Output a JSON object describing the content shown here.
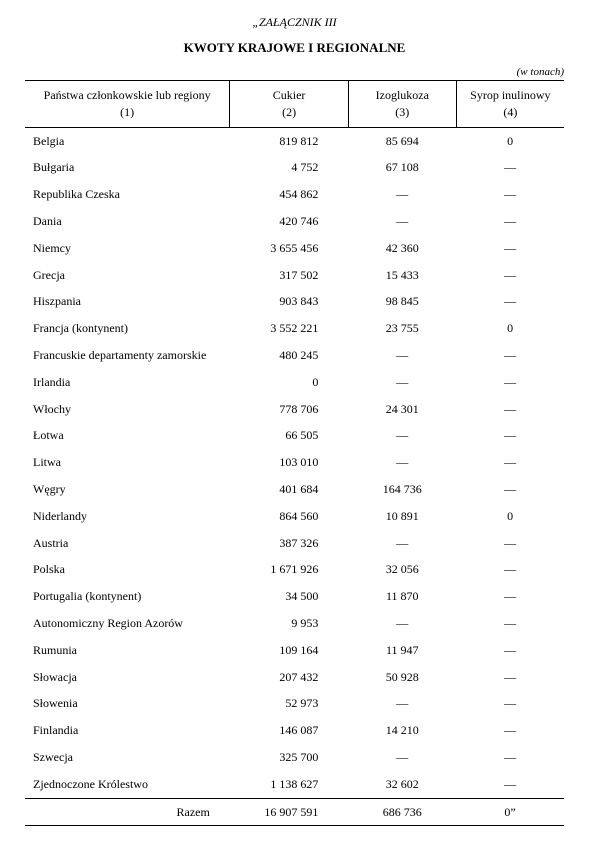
{
  "annex_label": "„ZAŁĄCZNIK III",
  "title": "KWOTY KRAJOWE I REGIONALNE",
  "unit_note": "(w tonach)",
  "columns": {
    "c1": {
      "label": "Państwa członkowskie lub regiony",
      "num": "(1)"
    },
    "c2": {
      "label": "Cukier",
      "num": "(2)"
    },
    "c3": {
      "label": "Izoglukoza",
      "num": "(3)"
    },
    "c4": {
      "label": "Syrop inulinowy",
      "num": "(4)"
    }
  },
  "rows": [
    {
      "country": "Belgia",
      "sugar": "819 812",
      "iso": "85 694",
      "inulin": "0"
    },
    {
      "country": "Bułgaria",
      "sugar": "4 752",
      "iso": "67 108",
      "inulin": "—"
    },
    {
      "country": "Republika Czeska",
      "sugar": "454 862",
      "iso": "—",
      "inulin": "—"
    },
    {
      "country": "Dania",
      "sugar": "420 746",
      "iso": "—",
      "inulin": "—"
    },
    {
      "country": "Niemcy",
      "sugar": "3 655 456",
      "iso": "42 360",
      "inulin": "—"
    },
    {
      "country": "Grecja",
      "sugar": "317 502",
      "iso": "15 433",
      "inulin": "—"
    },
    {
      "country": "Hiszpania",
      "sugar": "903 843",
      "iso": "98 845",
      "inulin": "—"
    },
    {
      "country": "Francja (kontynent)",
      "sugar": "3 552 221",
      "iso": "23 755",
      "inulin": "0"
    },
    {
      "country": "Francuskie departamenty zamorskie",
      "sugar": "480 245",
      "iso": "—",
      "inulin": "—"
    },
    {
      "country": "Irlandia",
      "sugar": "0",
      "iso": "—",
      "inulin": "—"
    },
    {
      "country": "Włochy",
      "sugar": "778 706",
      "iso": "24 301",
      "inulin": "—"
    },
    {
      "country": "Łotwa",
      "sugar": "66 505",
      "iso": "—",
      "inulin": "—"
    },
    {
      "country": "Litwa",
      "sugar": "103 010",
      "iso": "—",
      "inulin": "—"
    },
    {
      "country": "Węgry",
      "sugar": "401 684",
      "iso": "164 736",
      "inulin": "—"
    },
    {
      "country": "Niderlandy",
      "sugar": "864 560",
      "iso": "10 891",
      "inulin": "0"
    },
    {
      "country": "Austria",
      "sugar": "387 326",
      "iso": "—",
      "inulin": "—"
    },
    {
      "country": "Polska",
      "sugar": "1 671 926",
      "iso": "32 056",
      "inulin": "—"
    },
    {
      "country": "Portugalia (kontynent)",
      "sugar": "34 500",
      "iso": "11 870",
      "inulin": "—"
    },
    {
      "country": "Autonomiczny Region Azorów",
      "sugar": "9 953",
      "iso": "—",
      "inulin": "—"
    },
    {
      "country": "Rumunia",
      "sugar": "109 164",
      "iso": "11 947",
      "inulin": "—"
    },
    {
      "country": "Słowacja",
      "sugar": "207 432",
      "iso": "50 928",
      "inulin": "—"
    },
    {
      "country": "Słowenia",
      "sugar": "52 973",
      "iso": "—",
      "inulin": "—"
    },
    {
      "country": "Finlandia",
      "sugar": "146 087",
      "iso": "14 210",
      "inulin": "—"
    },
    {
      "country": "Szwecja",
      "sugar": "325 700",
      "iso": "—",
      "inulin": "—"
    },
    {
      "country": "Zjednoczone Królestwo",
      "sugar": "1 138 627",
      "iso": "32 602",
      "inulin": "—"
    }
  ],
  "total": {
    "label": "Razem",
    "sugar": "16 907 591",
    "iso": "686 736",
    "inulin": "0”"
  },
  "col_widths": {
    "c1": "38%",
    "c2": "22%",
    "c3": "20%",
    "c4": "20%"
  }
}
